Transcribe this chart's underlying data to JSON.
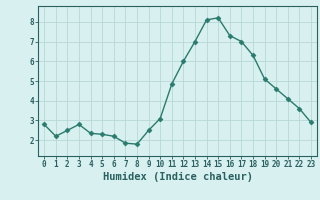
{
  "x": [
    0,
    1,
    2,
    3,
    4,
    5,
    6,
    7,
    8,
    9,
    10,
    11,
    12,
    13,
    14,
    15,
    16,
    17,
    18,
    19,
    20,
    21,
    22,
    23
  ],
  "y": [
    2.8,
    2.2,
    2.5,
    2.8,
    2.35,
    2.3,
    2.2,
    1.85,
    1.8,
    2.5,
    3.1,
    4.85,
    6.0,
    7.0,
    8.1,
    8.2,
    7.3,
    7.0,
    6.3,
    5.1,
    4.6,
    4.1,
    3.6,
    2.9
  ],
  "line_color": "#2a7b6e",
  "marker": "D",
  "marker_size": 2.5,
  "bg_color": "#d8f0ef",
  "grid_color": "#b8d8d8",
  "xlabel": "Humidex (Indice chaleur)",
  "xlabel_fontsize": 7.5,
  "ylim": [
    1.2,
    8.8
  ],
  "xlim": [
    -0.5,
    23.5
  ],
  "yticks": [
    2,
    3,
    4,
    5,
    6,
    7,
    8
  ],
  "xticks": [
    0,
    1,
    2,
    3,
    4,
    5,
    6,
    7,
    8,
    9,
    10,
    11,
    12,
    13,
    14,
    15,
    16,
    17,
    18,
    19,
    20,
    21,
    22,
    23
  ],
  "tick_fontsize": 5.5,
  "tick_color": "#2a6060",
  "axis_color": "#2a6060",
  "label_color": "#2a6060"
}
